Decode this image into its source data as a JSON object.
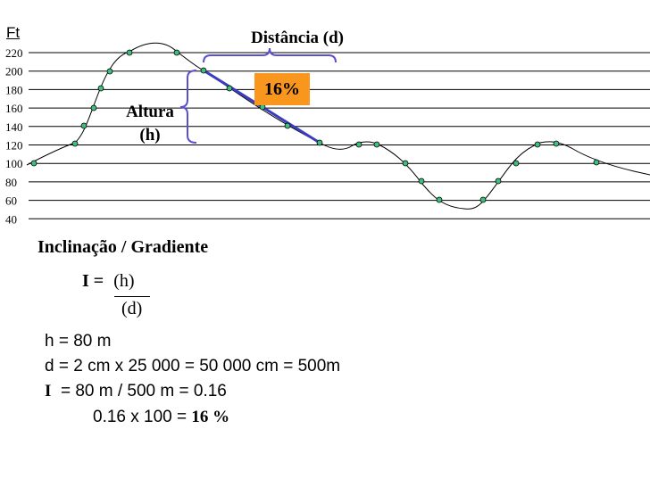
{
  "profile": {
    "unit": "Ft",
    "y_ticks": [
      "220",
      "200",
      "180",
      "160",
      "140",
      "120",
      "100",
      "80",
      "60",
      "40"
    ],
    "distance_label": "Distância (d)",
    "height_label_line1": "Altura",
    "height_label_line2": "(h)",
    "slope_badge": "16%",
    "colors": {
      "line": "#3c3cbe",
      "badge": "#f8961e",
      "point": "#3fbf7f"
    }
  },
  "explanation": {
    "title": "Inclinação / Gradiente",
    "formula_lhs": "I = ",
    "formula_num": "(h)",
    "formula_den": "(d)",
    "line_h": "h = 80 m",
    "line_d": "d = 2 cm x 25 000 = 50 000 cm = 500m",
    "line_i_label": "I",
    "line_i_rest": "  = 80 m / 500 m = 0.16",
    "line_pct_prefix": "0.16 x 100 = ",
    "line_pct_value": "16 %"
  }
}
